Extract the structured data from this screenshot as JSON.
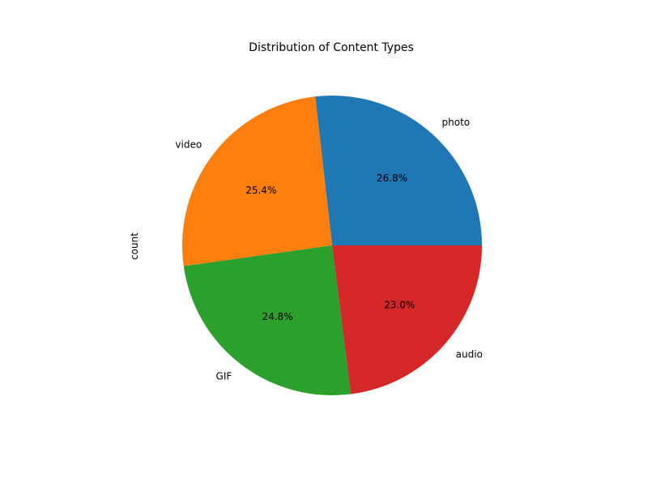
{
  "chart_data": {
    "type": "pie",
    "title": "Distribution of Content Types",
    "ylabel": "count",
    "categories": [
      "photo",
      "video",
      "GIF",
      "audio"
    ],
    "values": [
      26.8,
      25.4,
      24.8,
      23.0
    ],
    "value_labels": [
      "26.8%",
      "25.4%",
      "24.8%",
      "23.0%"
    ],
    "colors": [
      "#1f77b4",
      "#ff7f0e",
      "#2ca02c",
      "#d62728"
    ],
    "start_angle": 0,
    "direction": "counterclockwise",
    "legend": "none"
  }
}
